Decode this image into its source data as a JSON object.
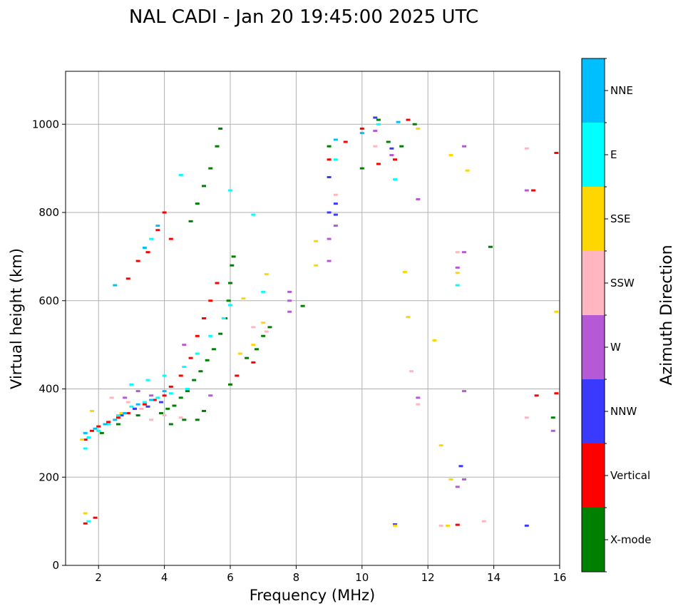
{
  "chart_data": {
    "type": "scatter",
    "title": "NAL CADI - Jan 20 19:45:00 2025 UTC",
    "xlabel": "Frequency (MHz)",
    "ylabel": "Virtual height (km)",
    "xlim": [
      1,
      16
    ],
    "ylim": [
      0,
      1120
    ],
    "xticks": [
      2,
      4,
      6,
      8,
      10,
      12,
      14,
      16
    ],
    "yticks": [
      0,
      200,
      400,
      600,
      800,
      1000
    ],
    "grid": true,
    "colorbar": {
      "label": "Azimuth Direction",
      "categories": [
        {
          "name": "X-mode",
          "color": "#008000"
        },
        {
          "name": "Vertical",
          "color": "#ff0000"
        },
        {
          "name": "NNW",
          "color": "#3a3aff"
        },
        {
          "name": "W",
          "color": "#b659d6"
        },
        {
          "name": "SSW",
          "color": "#ffb6c1"
        },
        {
          "name": "SSE",
          "color": "#ffd700"
        },
        {
          "name": "E",
          "color": "#00ffff"
        },
        {
          "name": "NNE",
          "color": "#00bfff"
        }
      ]
    },
    "series": [
      {
        "name": "X-mode",
        "points": [
          [
            3.9,
            345
          ],
          [
            4.1,
            355
          ],
          [
            4.3,
            362
          ],
          [
            4.5,
            380
          ],
          [
            4.7,
            395
          ],
          [
            4.9,
            420
          ],
          [
            5.1,
            440
          ],
          [
            5.3,
            465
          ],
          [
            5.5,
            490
          ],
          [
            5.7,
            525
          ],
          [
            5.85,
            560
          ],
          [
            5.95,
            600
          ],
          [
            6.0,
            640
          ],
          [
            6.05,
            680
          ],
          [
            6.1,
            700
          ],
          [
            5.0,
            330
          ],
          [
            5.2,
            350
          ],
          [
            4.6,
            330
          ],
          [
            4.2,
            320
          ],
          [
            4.8,
            780
          ],
          [
            5.0,
            820
          ],
          [
            5.2,
            860
          ],
          [
            5.4,
            900
          ],
          [
            5.6,
            950
          ],
          [
            5.7,
            990
          ],
          [
            6.5,
            470
          ],
          [
            6.8,
            490
          ],
          [
            7.0,
            520
          ],
          [
            7.2,
            540
          ],
          [
            6.0,
            410
          ],
          [
            8.2,
            588
          ],
          [
            9.0,
            950
          ],
          [
            10.0,
            900
          ],
          [
            10.5,
            1010
          ],
          [
            10.8,
            960
          ],
          [
            11.2,
            950
          ],
          [
            11.6,
            1000
          ],
          [
            13.9,
            722
          ],
          [
            15.8,
            335
          ],
          [
            2.1,
            300
          ],
          [
            2.6,
            320
          ],
          [
            3.2,
            340
          ]
        ]
      },
      {
        "name": "Vertical",
        "points": [
          [
            1.6,
            285
          ],
          [
            1.8,
            305
          ],
          [
            2.0,
            315
          ],
          [
            2.3,
            325
          ],
          [
            2.6,
            335
          ],
          [
            2.9,
            345
          ],
          [
            3.1,
            355
          ],
          [
            3.4,
            365
          ],
          [
            3.7,
            375
          ],
          [
            4.0,
            385
          ],
          [
            4.2,
            405
          ],
          [
            4.5,
            430
          ],
          [
            4.8,
            470
          ],
          [
            5.0,
            520
          ],
          [
            5.2,
            560
          ],
          [
            5.4,
            600
          ],
          [
            5.6,
            640
          ],
          [
            2.9,
            650
          ],
          [
            3.2,
            690
          ],
          [
            3.5,
            710
          ],
          [
            3.8,
            760
          ],
          [
            4.0,
            800
          ],
          [
            4.2,
            740
          ],
          [
            6.2,
            430
          ],
          [
            6.7,
            460
          ],
          [
            9.0,
            920
          ],
          [
            9.5,
            960
          ],
          [
            10.0,
            990
          ],
          [
            10.5,
            910
          ],
          [
            11.0,
            920
          ],
          [
            11.4,
            1010
          ],
          [
            12.9,
            92
          ],
          [
            15.2,
            850
          ],
          [
            15.9,
            935
          ],
          [
            15.9,
            390
          ],
          [
            15.3,
            385
          ],
          [
            1.6,
            95
          ],
          [
            1.9,
            108
          ]
        ]
      },
      {
        "name": "NNW",
        "points": [
          [
            2.7,
            340
          ],
          [
            3.1,
            355
          ],
          [
            3.5,
            360
          ],
          [
            3.9,
            370
          ],
          [
            9.0,
            880
          ],
          [
            9.2,
            820
          ],
          [
            9.0,
            800
          ],
          [
            9.2,
            795
          ],
          [
            10.4,
            1015
          ],
          [
            10.9,
            945
          ],
          [
            15.0,
            90
          ],
          [
            13.0,
            225
          ],
          [
            11.0,
            93
          ]
        ]
      },
      {
        "name": "W",
        "points": [
          [
            2.8,
            380
          ],
          [
            3.2,
            395
          ],
          [
            3.6,
            385
          ],
          [
            4.6,
            500
          ],
          [
            5.4,
            385
          ],
          [
            7.8,
            620
          ],
          [
            7.8,
            600
          ],
          [
            7.8,
            575
          ],
          [
            9.0,
            690
          ],
          [
            9.2,
            770
          ],
          [
            9.0,
            740
          ],
          [
            10.4,
            985
          ],
          [
            10.9,
            930
          ],
          [
            11.7,
            830
          ],
          [
            12.9,
            675
          ],
          [
            13.1,
            710
          ],
          [
            13.1,
            950
          ],
          [
            13.1,
            395
          ],
          [
            13.1,
            195
          ],
          [
            12.9,
            178
          ],
          [
            15.0,
            850
          ],
          [
            15.8,
            305
          ],
          [
            11.7,
            380
          ]
        ]
      },
      {
        "name": "SSW",
        "points": [
          [
            2.4,
            380
          ],
          [
            2.9,
            370
          ],
          [
            3.3,
            355
          ],
          [
            3.6,
            330
          ],
          [
            4.0,
            340
          ],
          [
            4.5,
            335
          ],
          [
            6.7,
            540
          ],
          [
            7.1,
            530
          ],
          [
            9.2,
            840
          ],
          [
            10.4,
            950
          ],
          [
            11.7,
            365
          ],
          [
            11.5,
            440
          ],
          [
            12.9,
            710
          ],
          [
            15.0,
            945
          ],
          [
            15.0,
            335
          ],
          [
            13.7,
            100
          ],
          [
            12.4,
            90
          ]
        ]
      },
      {
        "name": "SSE",
        "points": [
          [
            1.5,
            285
          ],
          [
            1.8,
            350
          ],
          [
            2.7,
            345
          ],
          [
            6.3,
            480
          ],
          [
            6.4,
            605
          ],
          [
            6.7,
            500
          ],
          [
            7.0,
            550
          ],
          [
            7.1,
            660
          ],
          [
            8.6,
            735
          ],
          [
            8.6,
            680
          ],
          [
            11.3,
            665
          ],
          [
            11.4,
            563
          ],
          [
            12.2,
            510
          ],
          [
            12.4,
            272
          ],
          [
            12.7,
            195
          ],
          [
            12.7,
            930
          ],
          [
            13.2,
            895
          ],
          [
            12.9,
            663
          ],
          [
            15.9,
            575
          ],
          [
            12.6,
            90
          ],
          [
            11.0,
            90
          ],
          [
            1.6,
            118
          ],
          [
            11.7,
            990
          ]
        ]
      },
      {
        "name": "E",
        "points": [
          [
            1.7,
            290
          ],
          [
            2.0,
            305
          ],
          [
            2.3,
            320
          ],
          [
            2.6,
            340
          ],
          [
            3.0,
            360
          ],
          [
            3.4,
            370
          ],
          [
            3.8,
            380
          ],
          [
            4.2,
            390
          ],
          [
            4.7,
            400
          ],
          [
            3.0,
            410
          ],
          [
            3.5,
            420
          ],
          [
            4.0,
            430
          ],
          [
            4.6,
            450
          ],
          [
            5.0,
            480
          ],
          [
            5.4,
            520
          ],
          [
            5.8,
            560
          ],
          [
            6.0,
            590
          ],
          [
            3.6,
            740
          ],
          [
            4.5,
            885
          ],
          [
            6.0,
            850
          ],
          [
            6.7,
            795
          ],
          [
            7.0,
            620
          ],
          [
            9.2,
            920
          ],
          [
            10.5,
            1000
          ],
          [
            11.0,
            875
          ],
          [
            12.9,
            635
          ],
          [
            1.7,
            100
          ],
          [
            1.6,
            265
          ]
        ]
      },
      {
        "name": "NNE",
        "points": [
          [
            1.6,
            300
          ],
          [
            1.9,
            310
          ],
          [
            2.2,
            320
          ],
          [
            2.5,
            330
          ],
          [
            2.8,
            345
          ],
          [
            3.2,
            365
          ],
          [
            3.6,
            375
          ],
          [
            4.0,
            395
          ],
          [
            3.4,
            720
          ],
          [
            3.8,
            770
          ],
          [
            2.5,
            635
          ],
          [
            9.2,
            965
          ],
          [
            10.0,
            980
          ],
          [
            11.1,
            1005
          ]
        ]
      }
    ]
  }
}
